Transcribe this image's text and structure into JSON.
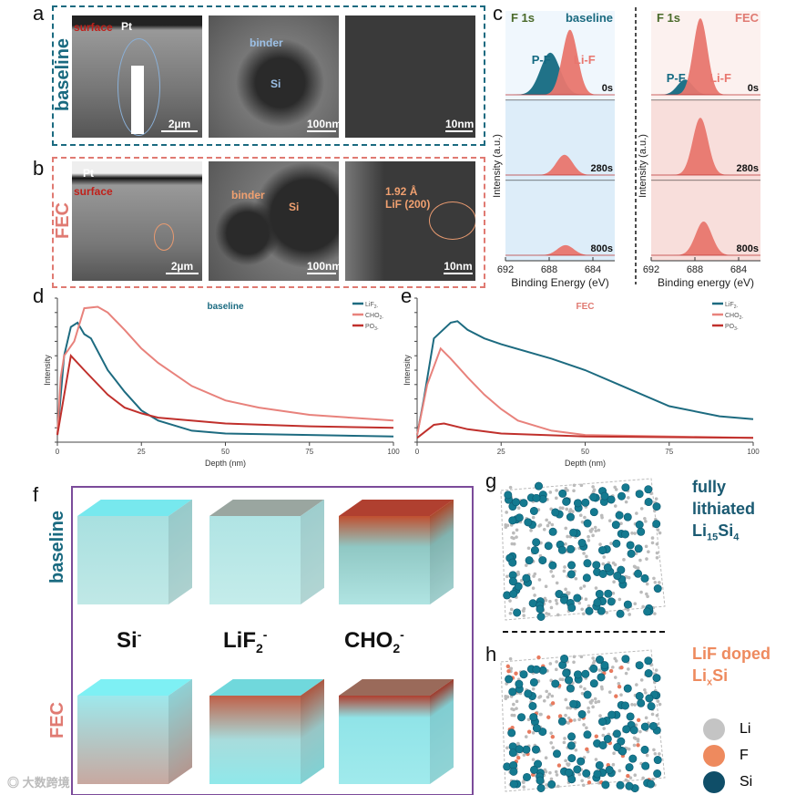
{
  "panels": {
    "a": "a",
    "b": "b",
    "c": "c",
    "d": "d",
    "e": "e",
    "f": "f",
    "g": "g",
    "h": "h"
  },
  "a": {
    "group": "baseline",
    "pt": "Pt",
    "surface": "surface",
    "binder": "binder",
    "si": "Si",
    "scales": [
      "2µm",
      "100nm",
      "10nm"
    ]
  },
  "b": {
    "group": "FEC",
    "pt": "Pt",
    "surface": "surface",
    "binder": "binder",
    "si": "Si",
    "lattice": "1.92 Å",
    "lattice_phase": "LiF (200)",
    "scales": [
      "2µm",
      "100nm",
      "10nm"
    ]
  },
  "colors": {
    "baseline": "#1a6a80",
    "fec": "#e07a72",
    "lif": "#1d6b80",
    "cho": "#e8827c",
    "po": "#c0302c",
    "purple": "#7b4b9a"
  },
  "chart_data": [
    {
      "id": "c-baseline",
      "type": "area",
      "title": "F 1s",
      "condition": "baseline",
      "xlabel": "Binding Energy (eV)",
      "ylabel": "Intensity (a.u.)",
      "xlim": [
        692,
        682
      ],
      "xticks": [
        692,
        688,
        684
      ],
      "peaks": [
        "P-F",
        "Li-F"
      ],
      "spectra": [
        {
          "time": "0s",
          "components": [
            {
              "name": "P-F",
              "center": 687.9,
              "height": 0.55,
              "width": 0.9
            },
            {
              "name": "Li-F",
              "center": 686.1,
              "height": 0.85,
              "width": 0.7
            }
          ]
        },
        {
          "time": "280s",
          "components": [
            {
              "name": "Li-F",
              "center": 686.6,
              "height": 0.3,
              "width": 0.75
            }
          ]
        },
        {
          "time": "800s",
          "components": [
            {
              "name": "Li-F",
              "center": 686.5,
              "height": 0.15,
              "width": 0.75
            }
          ]
        }
      ]
    },
    {
      "id": "c-fec",
      "type": "area",
      "title": "F 1s",
      "condition": "FEC",
      "xlabel": "Binding energy (eV)",
      "ylabel": "Intensity (a.u.)",
      "xlim": [
        692,
        682
      ],
      "xticks": [
        692,
        688,
        684
      ],
      "peaks": [
        "P-F",
        "Li-F"
      ],
      "spectra": [
        {
          "time": "0s",
          "components": [
            {
              "name": "P-F",
              "center": 688.9,
              "height": 0.2,
              "width": 0.7
            },
            {
              "name": "Li-F",
              "center": 687.5,
              "height": 1.0,
              "width": 0.65
            }
          ]
        },
        {
          "time": "280s",
          "components": [
            {
              "name": "Li-F",
              "center": 687.5,
              "height": 0.85,
              "width": 0.7
            }
          ]
        },
        {
          "time": "800s",
          "components": [
            {
              "name": "Li-F",
              "center": 687.2,
              "height": 0.5,
              "width": 0.75
            }
          ]
        }
      ]
    },
    {
      "id": "d",
      "type": "line",
      "title": "baseline",
      "xlabel": "Depth (nm)",
      "ylabel": "Intensity",
      "xlim": [
        0,
        100
      ],
      "ylim": [
        0,
        1
      ],
      "xticks": [
        0,
        25,
        50,
        75,
        100
      ],
      "legend": "top-right",
      "series": [
        {
          "name": "LiF2-",
          "label": "LiF",
          "sub": "2",
          "sup": "-",
          "x": [
            0,
            2,
            4,
            6,
            8,
            10,
            15,
            20,
            25,
            30,
            40,
            50,
            75,
            100
          ],
          "y": [
            0.05,
            0.6,
            0.8,
            0.83,
            0.75,
            0.72,
            0.5,
            0.35,
            0.22,
            0.15,
            0.08,
            0.06,
            0.05,
            0.04
          ]
        },
        {
          "name": "CHO2-",
          "label": "CHO",
          "sub": "2",
          "sup": "-",
          "x": [
            0,
            1,
            2,
            5,
            8,
            12,
            15,
            20,
            25,
            30,
            40,
            50,
            60,
            75,
            100
          ],
          "y": [
            0.05,
            0.45,
            0.6,
            0.7,
            0.93,
            0.94,
            0.9,
            0.78,
            0.65,
            0.55,
            0.39,
            0.29,
            0.24,
            0.19,
            0.15
          ]
        },
        {
          "name": "PO3-",
          "label": "PO",
          "sub": "3",
          "sup": "-",
          "x": [
            0,
            4,
            8,
            15,
            20,
            25,
            30,
            50,
            75,
            100
          ],
          "y": [
            0.05,
            0.6,
            0.5,
            0.33,
            0.24,
            0.2,
            0.17,
            0.13,
            0.11,
            0.1
          ]
        }
      ]
    },
    {
      "id": "e",
      "type": "line",
      "title": "FEC",
      "xlabel": "Depth (nm)",
      "ylabel": "Intensity",
      "xlim": [
        0,
        100
      ],
      "ylim": [
        0,
        1
      ],
      "xticks": [
        0,
        25,
        50,
        75,
        100
      ],
      "legend": "top-right",
      "series": [
        {
          "name": "LiF2-",
          "label": "LiF",
          "sub": "2",
          "sup": "-",
          "x": [
            0,
            2,
            5,
            10,
            12,
            15,
            20,
            25,
            40,
            50,
            60,
            75,
            90,
            100
          ],
          "y": [
            0.05,
            0.3,
            0.72,
            0.83,
            0.84,
            0.78,
            0.72,
            0.68,
            0.58,
            0.5,
            0.4,
            0.25,
            0.18,
            0.16
          ]
        },
        {
          "name": "CHO2-",
          "label": "CHO",
          "sub": "2",
          "sup": "-",
          "x": [
            0,
            3,
            7,
            10,
            15,
            20,
            25,
            30,
            40,
            50,
            100
          ],
          "y": [
            0.05,
            0.4,
            0.65,
            0.58,
            0.45,
            0.33,
            0.23,
            0.15,
            0.08,
            0.05,
            0.03
          ]
        },
        {
          "name": "PO3-",
          "label": "PO",
          "sub": "3",
          "sup": "-",
          "x": [
            0,
            5,
            8,
            15,
            25,
            50,
            100
          ],
          "y": [
            0.03,
            0.12,
            0.13,
            0.09,
            0.06,
            0.04,
            0.03
          ]
        }
      ]
    }
  ],
  "f": {
    "rows": [
      "baseline",
      "FEC"
    ],
    "ions": [
      {
        "base": "Si",
        "sub": "",
        "sup": "-"
      },
      {
        "base": "LiF",
        "sub": "2",
        "sup": "-"
      },
      {
        "base": "CHO",
        "sub": "2",
        "sup": "-"
      }
    ]
  },
  "g": {
    "line1": "fully",
    "line2": "lithiated",
    "formula": "Li",
    "sub1": "15",
    "el2": "Si",
    "sub2": "4"
  },
  "h": {
    "line1": "LiF doped",
    "formula": "Li",
    "sub1": "x",
    "el2": "Si"
  },
  "legend": [
    {
      "label": "Li",
      "color": "#c4c4c4"
    },
    {
      "label": "F",
      "color": "#ee8a5e"
    },
    {
      "label": "Si",
      "color": "#0f4e68"
    }
  ],
  "watermark": "大数跨境"
}
